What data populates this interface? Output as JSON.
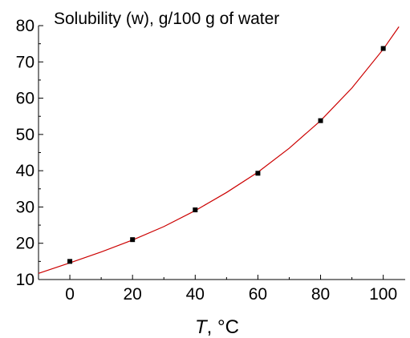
{
  "chart_data": {
    "type": "scatter",
    "title": "Solubility (w), g/100 g of water",
    "xlabel_var": "T",
    "xlabel_unit": ", °C",
    "ylabel": "",
    "xlim": [
      -10,
      107
    ],
    "ylim": [
      10,
      80
    ],
    "xticks": [
      0,
      20,
      40,
      60,
      80,
      100
    ],
    "yticks": [
      10,
      20,
      30,
      40,
      50,
      60,
      70,
      80
    ],
    "grid": false,
    "series": [
      {
        "kind": "points",
        "color": "#000000",
        "x": [
          0,
          20,
          40,
          60,
          80,
          100
        ],
        "y": [
          15,
          21,
          29.2,
          39.3,
          53.8,
          73.7
        ]
      },
      {
        "kind": "fit-curve",
        "color": "#cc0000",
        "x": [
          -10,
          0,
          10,
          20,
          30,
          40,
          50,
          60,
          70,
          80,
          90,
          100,
          105
        ],
        "y": [
          11.7,
          14.6,
          17.6,
          20.9,
          24.6,
          29.0,
          34.0,
          39.6,
          46.2,
          53.8,
          62.8,
          73.5,
          79.7
        ]
      }
    ]
  }
}
